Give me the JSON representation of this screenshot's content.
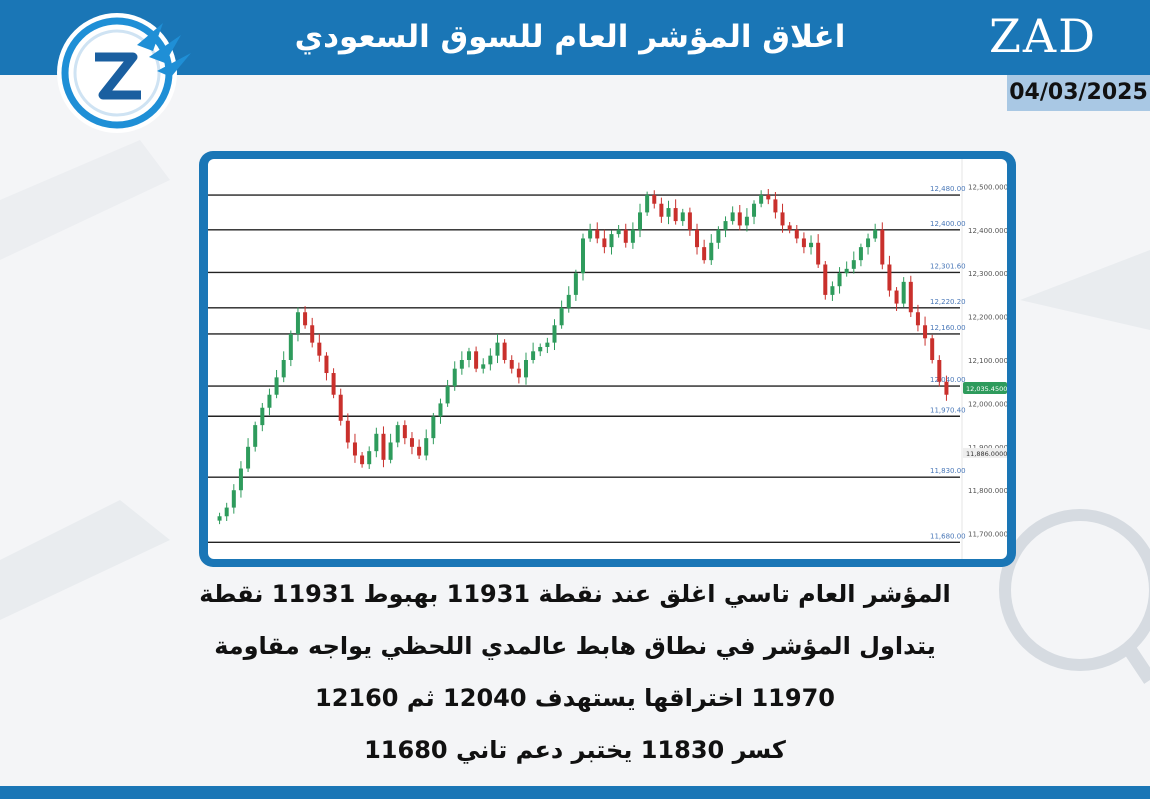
{
  "header": {
    "title": "اغلاق المؤشر العام للسوق السعودي",
    "brand": "ZAD",
    "date": "04/03/2025"
  },
  "colors": {
    "brand_blue": "#1a76b6",
    "date_bg": "#a9c8e4",
    "candle_up": "#2e9b5c",
    "candle_down": "#c9302c"
  },
  "chart_data": {
    "type": "candlestick",
    "ylim": [
      11660,
      12540
    ],
    "y_axis_ticks": [
      "12,500.0000",
      "12,400.0000",
      "12,300.0000",
      "12,200.0000",
      "12,100.0000",
      "12,000.0000",
      "11,900.0000",
      "11,800.0000",
      "11,700.0000"
    ],
    "y_axis_tick_values": [
      12500,
      12400,
      12300,
      12200,
      12100,
      12000,
      11900,
      11800,
      11700
    ],
    "levels": [
      {
        "value": 12480,
        "label": "12,480.00"
      },
      {
        "value": 12400,
        "label": "12,400.00"
      },
      {
        "value": 12301.6,
        "label": "12,301.60"
      },
      {
        "value": 12220.2,
        "label": "12,220.20"
      },
      {
        "value": 12160,
        "label": "12,160.00"
      },
      {
        "value": 12040,
        "label": "12,040.00"
      },
      {
        "value": 11970.4,
        "label": "11,970.40"
      },
      {
        "value": 11830,
        "label": "11,830.00"
      },
      {
        "value": 11680,
        "label": "11,680.00"
      }
    ],
    "current_price": {
      "value": 12035.45,
      "label": "12,035.4500"
    },
    "marker_price": {
      "value": 11886,
      "label": "11,886.0000"
    },
    "close_path": [
      11740,
      11760,
      11800,
      11850,
      11900,
      11950,
      11990,
      12020,
      12060,
      12100,
      12160,
      12210,
      12180,
      12140,
      12110,
      12070,
      12020,
      11960,
      11910,
      11880,
      11860,
      11890,
      11930,
      11870,
      11910,
      11950,
      11920,
      11900,
      11880,
      11920,
      11970,
      12000,
      12040,
      12080,
      12100,
      12120,
      12080,
      12090,
      12110,
      12140,
      12100,
      12080,
      12060,
      12100,
      12120,
      12130,
      12140,
      12180,
      12220,
      12250,
      12300,
      12380,
      12400,
      12380,
      12360,
      12390,
      12400,
      12370,
      12400,
      12440,
      12480,
      12460,
      12430,
      12450,
      12420,
      12440,
      12400,
      12360,
      12330,
      12370,
      12400,
      12420,
      12440,
      12410,
      12430,
      12460,
      12480,
      12470,
      12440,
      12410,
      12400,
      12380,
      12360,
      12370,
      12320,
      12250,
      12270,
      12300,
      12310,
      12330,
      12360,
      12380,
      12400,
      12320,
      12260,
      12230,
      12280,
      12210,
      12180,
      12150,
      12100,
      12050,
      12020
    ]
  },
  "analysis": {
    "line1": "المؤشر العام تاسي اغلق عند نقطة 11931 بهبوط 11931 نقطة",
    "line2": "يتداول المؤشر  في نطاق هابط عالمدي اللحظي    يواجه مقاومة",
    "line3": "11970 اختراقها يستهدف 12040 ثم 12160",
    "line4": "كسر 11830 يختبر دعم تاني 11680"
  }
}
